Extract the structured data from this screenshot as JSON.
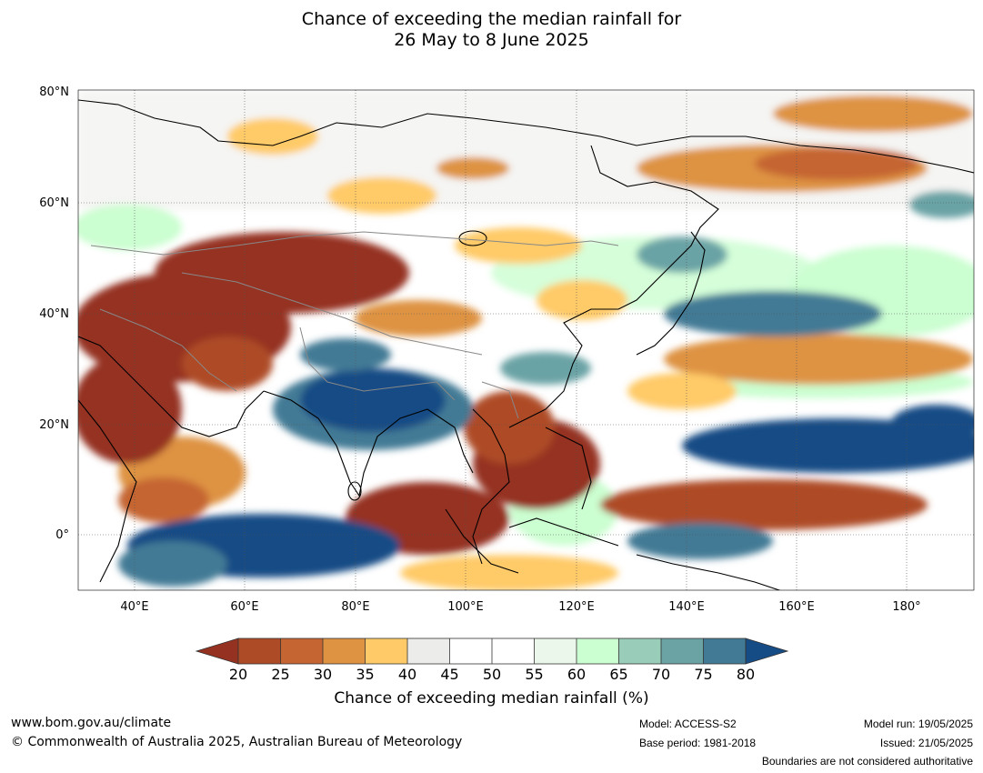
{
  "title": {
    "line1": "Chance of exceeding the median rainfall for",
    "line2": "26 May to 8 June 2025"
  },
  "map": {
    "lat_labels": [
      "80°N",
      "60°N",
      "40°N",
      "20°N",
      "0°"
    ],
    "lon_labels": [
      "40°E",
      "60°E",
      "80°E",
      "100°E",
      "120°E",
      "140°E",
      "160°E",
      "180°"
    ],
    "lat_range": [
      -10,
      80
    ],
    "lon_range": [
      30,
      190
    ],
    "wet_regions": [
      "Indian subcontinent and Bay of Bengal",
      "Equatorial Indian Ocean",
      "Tropical western Pacific",
      "Mid-latitude North Pacific"
    ],
    "dry_regions": [
      "Middle East and Central Asia",
      "Arabian Sea",
      "Indochina and South China Sea",
      "Equatorial Pacific north of New Guinea",
      "Eastern Siberia"
    ]
  },
  "colorbar": {
    "title": "Chance of exceeding median rainfall (%)",
    "ticks": [
      "20",
      "25",
      "30",
      "35",
      "40",
      "45",
      "50",
      "55",
      "60",
      "65",
      "70",
      "75",
      "80"
    ],
    "colors": [
      "#953120",
      "#ae4b27",
      "#c56531",
      "#de9343",
      "#ffca67",
      "#ececea",
      "#ffffff",
      "#ffffff",
      "#eaf7ea",
      "#cbfed0",
      "#99cdb9",
      "#6ba3a5",
      "#427a95",
      "#164c85"
    ]
  },
  "footer": {
    "url": "www.bom.gov.au/climate",
    "copyright": "© Commonwealth of Australia 2025, Australian Bureau of Meteorology",
    "model": "Model: ACCESS-S2",
    "base_period": "Base period: 1981-2018",
    "model_run": "Model run: 19/05/2025",
    "issued": "Issued: 21/05/2025",
    "note": "Boundaries are not considered authoritative"
  }
}
